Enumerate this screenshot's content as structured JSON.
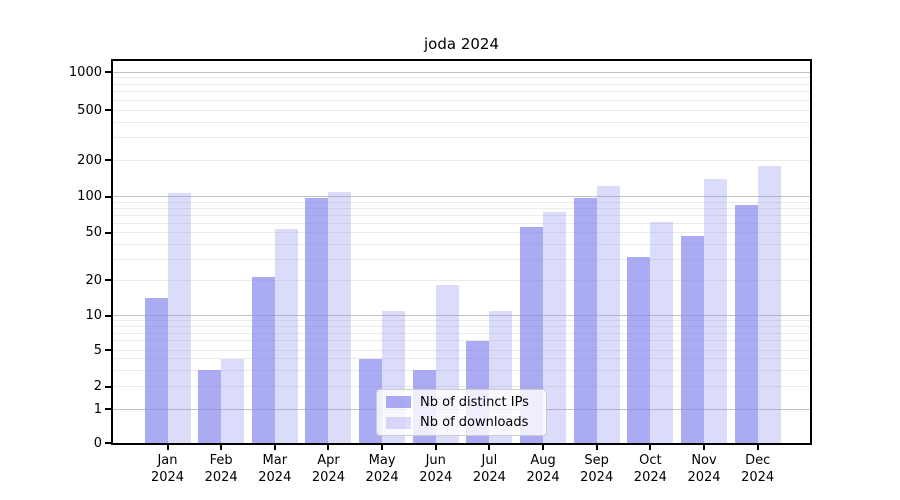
{
  "chart_data": {
    "type": "bar",
    "title": "joda 2024",
    "categories": [
      "Jan",
      "Feb",
      "Mar",
      "Apr",
      "May",
      "Jun",
      "Jul",
      "Aug",
      "Sep",
      "Oct",
      "Nov",
      "Dec"
    ],
    "category_year": "2024",
    "series": [
      {
        "name": "Nb of distinct IPs",
        "alpha": 0.7,
        "values": [
          14,
          3,
          21,
          97,
          4,
          3,
          6,
          56,
          97,
          31,
          47,
          85
        ]
      },
      {
        "name": "Nb of downloads",
        "alpha": 0.3,
        "values": [
          108,
          4,
          54,
          110,
          11,
          18,
          11,
          75,
          123,
          61,
          140,
          177
        ]
      }
    ],
    "y_axis": {
      "scale": "log-like",
      "tick_labels": [
        "0",
        "1",
        "2",
        "5",
        "10",
        "20",
        "50",
        "100",
        "200",
        "500",
        "1000"
      ],
      "tick_values": [
        0,
        1,
        2,
        5,
        10,
        20,
        50,
        100,
        200,
        500,
        1000
      ],
      "major_gridlines": [
        1,
        10,
        100,
        1000
      ],
      "minor_gridlines": [
        2,
        3,
        4,
        5,
        6,
        7,
        8,
        9,
        20,
        30,
        40,
        50,
        60,
        70,
        80,
        90,
        200,
        300,
        400,
        500,
        600,
        700,
        800,
        900
      ],
      "ylim": [
        0,
        1200
      ]
    },
    "legend": {
      "position": "bottom-center"
    },
    "grid": true
  },
  "colors": {
    "bar_base": "#8888ee",
    "grid_major": "#c3c3c3",
    "grid_minor": "#ebebeb",
    "spine": "#000000",
    "legend_border": "#cccccc"
  }
}
